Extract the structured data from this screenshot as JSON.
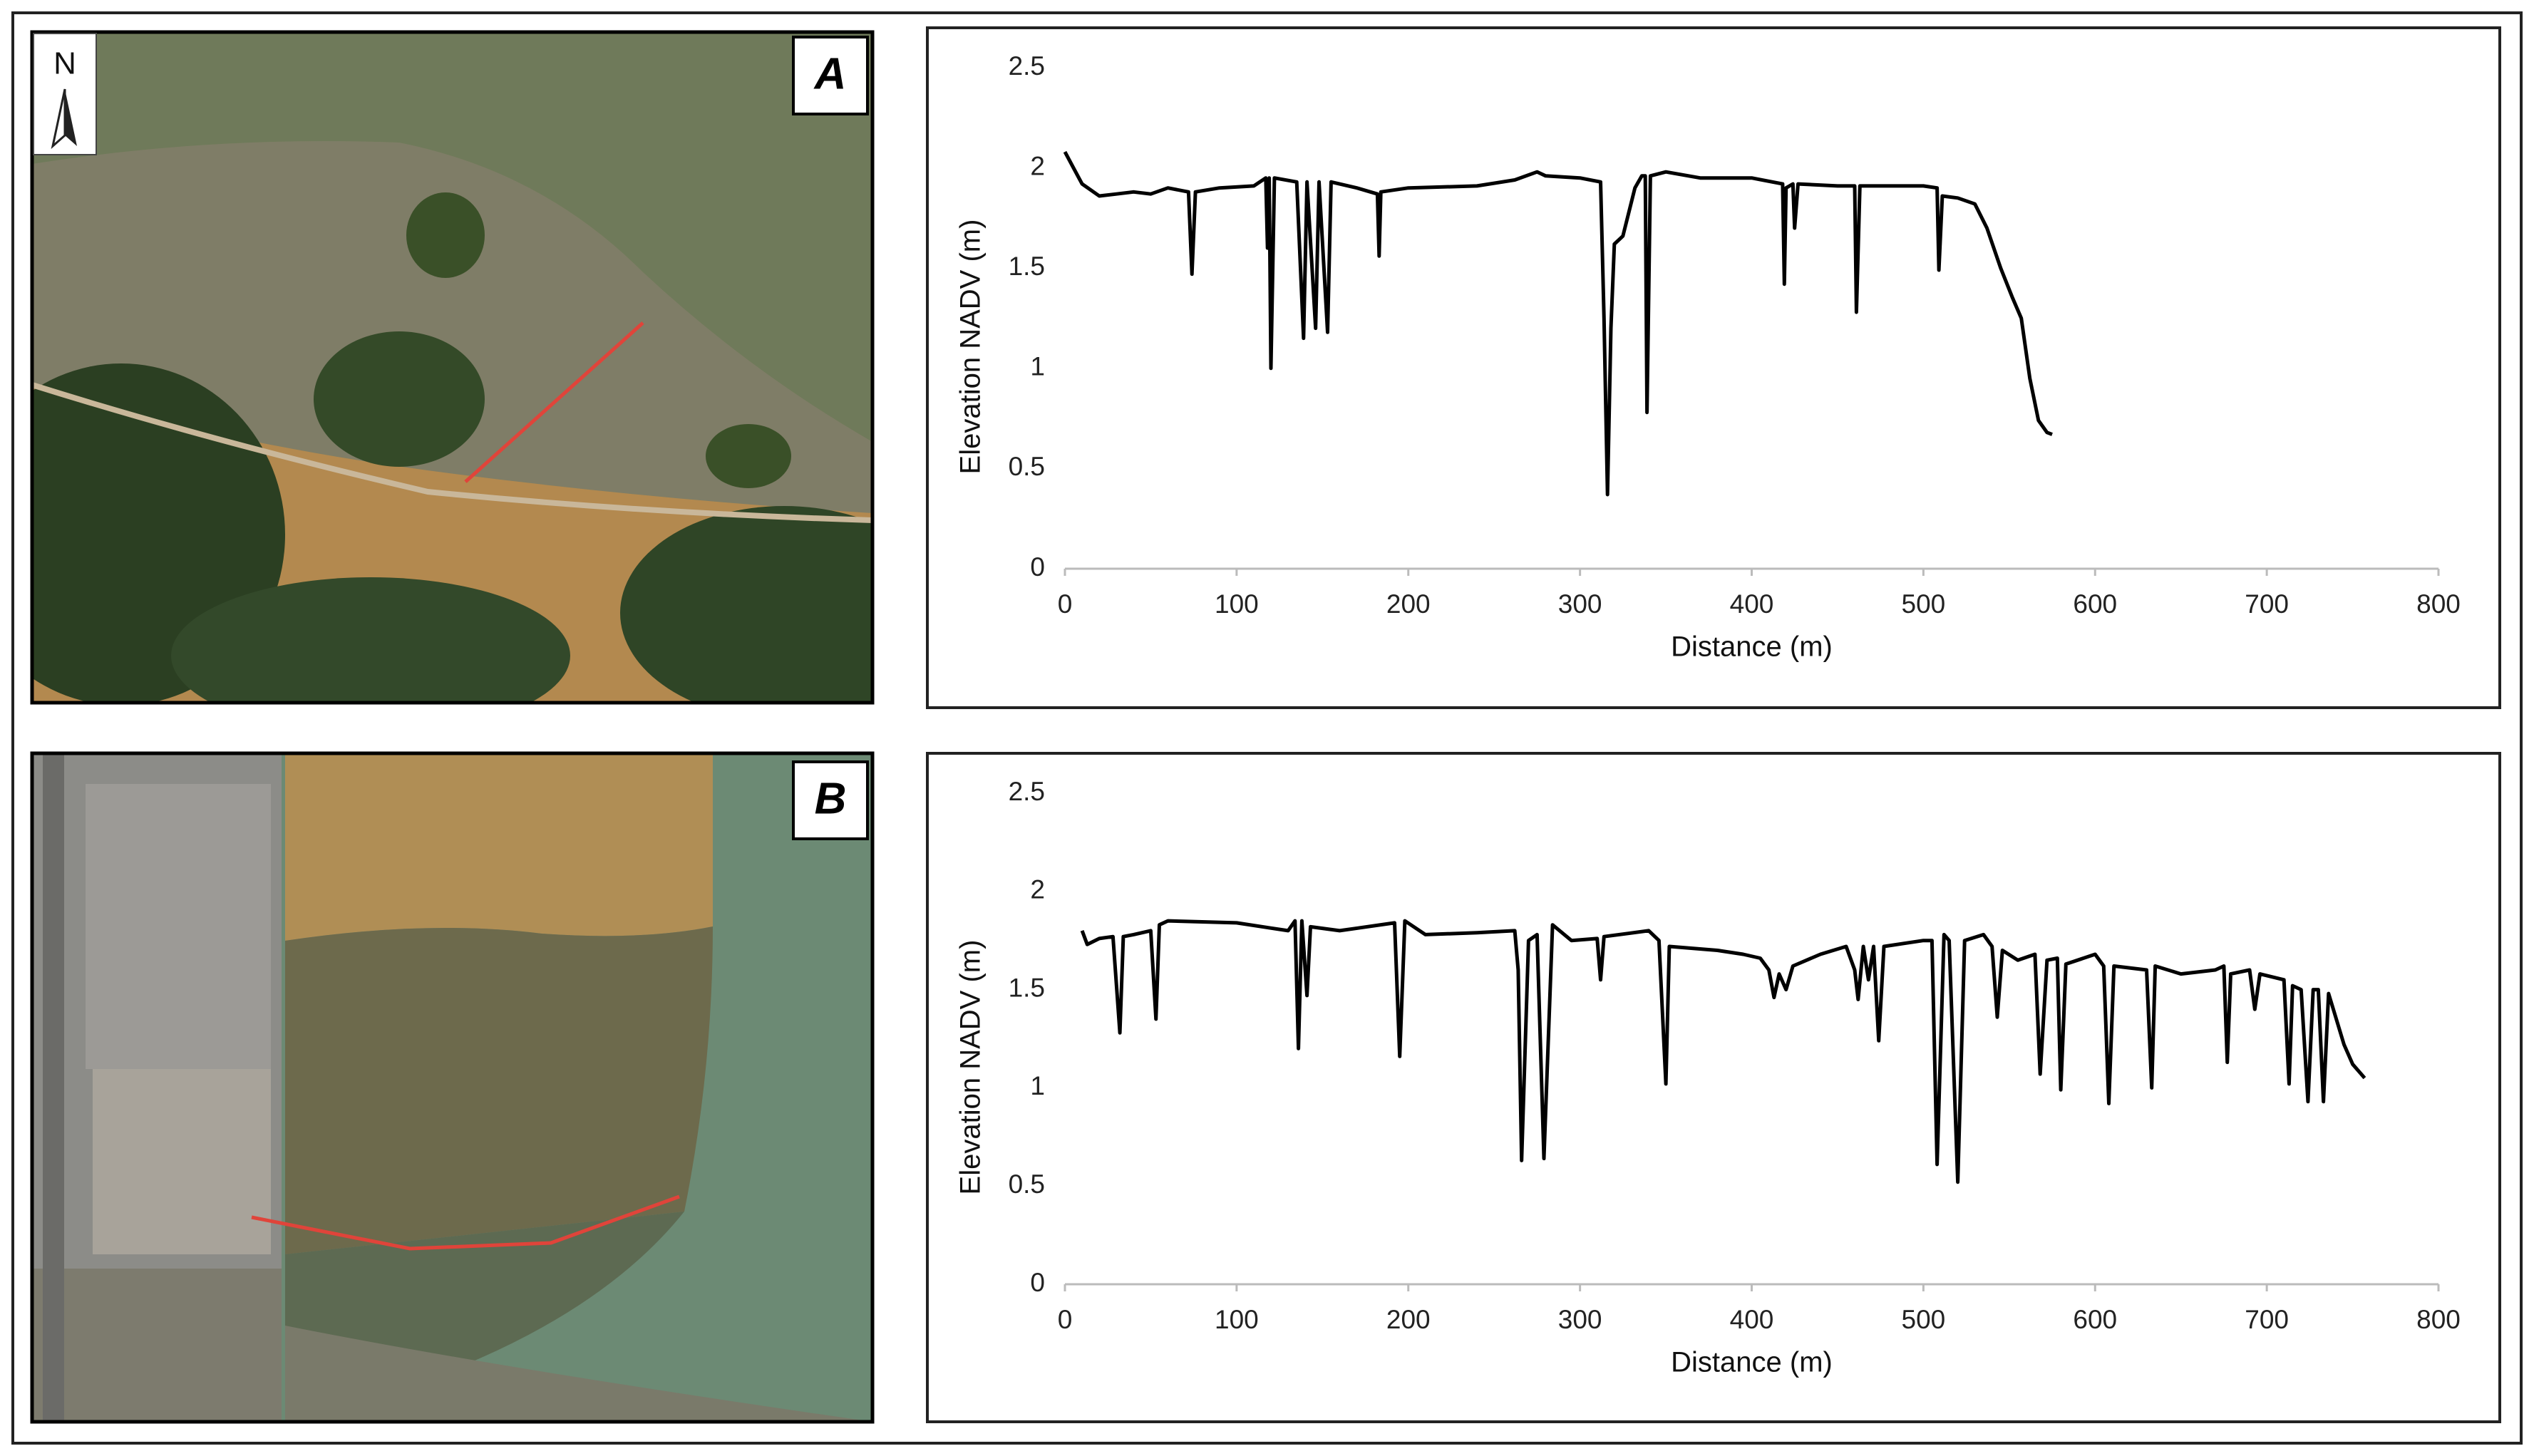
{
  "map_panels": [
    {
      "label": "A",
      "compass": "N"
    },
    {
      "label": "B"
    }
  ],
  "chart_data": [
    {
      "type": "line",
      "x_label": "Distance (m)",
      "y_label": "Elevation NADV (m)",
      "xlim": [
        0,
        800
      ],
      "xticks": [
        0,
        100,
        200,
        300,
        400,
        500,
        600,
        700,
        800
      ],
      "ylim": [
        0,
        2.5
      ],
      "yticks": [
        0,
        0.5,
        1,
        1.5,
        2,
        2.5
      ],
      "color": "#000000",
      "x": [
        0,
        5,
        10,
        20,
        30,
        40,
        50,
        60,
        72,
        74,
        76,
        90,
        110,
        117,
        118,
        119,
        120,
        122,
        135,
        139,
        141,
        146,
        148,
        153,
        155,
        170,
        182,
        183,
        184,
        200,
        240,
        262,
        275,
        280,
        300,
        312,
        314,
        316,
        318,
        320,
        325,
        332,
        336,
        338,
        339,
        341,
        350,
        370,
        400,
        418,
        419,
        420,
        424,
        425,
        427,
        450,
        460,
        461,
        463,
        500,
        508,
        509,
        511,
        520,
        530,
        537,
        545,
        552,
        557,
        562,
        567,
        572,
        575
      ],
      "values": [
        2.08,
        2.0,
        1.92,
        1.86,
        1.87,
        1.88,
        1.87,
        1.9,
        1.88,
        1.47,
        1.88,
        1.9,
        1.91,
        1.95,
        1.6,
        1.95,
        1.0,
        1.95,
        1.93,
        1.15,
        1.93,
        1.2,
        1.93,
        1.18,
        1.93,
        1.9,
        1.87,
        1.56,
        1.88,
        1.9,
        1.91,
        1.94,
        1.98,
        1.96,
        1.95,
        1.93,
        1.25,
        0.37,
        1.2,
        1.62,
        1.66,
        1.9,
        1.96,
        1.96,
        0.78,
        1.96,
        1.98,
        1.95,
        1.95,
        1.92,
        1.42,
        1.9,
        1.92,
        1.7,
        1.92,
        1.91,
        1.91,
        1.28,
        1.91,
        1.91,
        1.9,
        1.49,
        1.86,
        1.85,
        1.82,
        1.7,
        1.5,
        1.35,
        1.25,
        0.95,
        0.74,
        0.68,
        0.67
      ]
    },
    {
      "type": "line",
      "x_label": "Distance (m)",
      "y_label": "Elevation NADV (m)",
      "xlim": [
        0,
        800
      ],
      "xticks": [
        0,
        100,
        200,
        300,
        400,
        500,
        600,
        700,
        800
      ],
      "ylim": [
        0,
        2.5
      ],
      "yticks": [
        0,
        0.5,
        1,
        1.5,
        2,
        2.5
      ],
      "color": "#000000",
      "x": [
        10,
        13,
        20,
        28,
        32,
        34,
        40,
        50,
        53,
        55,
        60,
        100,
        130,
        134,
        136,
        138,
        141,
        143,
        160,
        192,
        195,
        198,
        210,
        240,
        262,
        264,
        266,
        270,
        275,
        279,
        284,
        295,
        310,
        312,
        314,
        340,
        346,
        350,
        352,
        380,
        395,
        405,
        410,
        413,
        416,
        420,
        424,
        440,
        455,
        460,
        462,
        465,
        468,
        471,
        474,
        477,
        500,
        505,
        508,
        512,
        515,
        520,
        524,
        535,
        540,
        543,
        546,
        555,
        565,
        568,
        572,
        578,
        580,
        583,
        600,
        605,
        608,
        611,
        630,
        633,
        635,
        650,
        670,
        675,
        677,
        679,
        690,
        693,
        696,
        710,
        713,
        715,
        720,
        724,
        727,
        730,
        733,
        736,
        745,
        750,
        757
      ],
      "values": [
        1.8,
        1.73,
        1.76,
        1.77,
        1.28,
        1.77,
        1.78,
        1.8,
        1.35,
        1.83,
        1.85,
        1.84,
        1.8,
        1.85,
        1.2,
        1.85,
        1.47,
        1.82,
        1.8,
        1.84,
        1.16,
        1.85,
        1.78,
        1.79,
        1.8,
        1.6,
        0.63,
        1.75,
        1.78,
        0.64,
        1.83,
        1.75,
        1.76,
        1.55,
        1.77,
        1.8,
        1.75,
        1.02,
        1.72,
        1.7,
        1.68,
        1.66,
        1.6,
        1.46,
        1.58,
        1.5,
        1.62,
        1.68,
        1.72,
        1.6,
        1.45,
        1.72,
        1.55,
        1.72,
        1.24,
        1.72,
        1.75,
        1.75,
        0.61,
        1.78,
        1.75,
        0.52,
        1.75,
        1.78,
        1.72,
        1.36,
        1.7,
        1.65,
        1.68,
        1.07,
        1.65,
        1.66,
        0.99,
        1.63,
        1.68,
        1.62,
        0.92,
        1.62,
        1.6,
        1.0,
        1.62,
        1.58,
        1.6,
        1.62,
        1.13,
        1.58,
        1.6,
        1.4,
        1.58,
        1.55,
        1.02,
        1.52,
        1.5,
        0.93,
        1.5,
        1.5,
        0.93,
        1.48,
        1.22,
        1.12,
        1.05
      ]
    }
  ]
}
